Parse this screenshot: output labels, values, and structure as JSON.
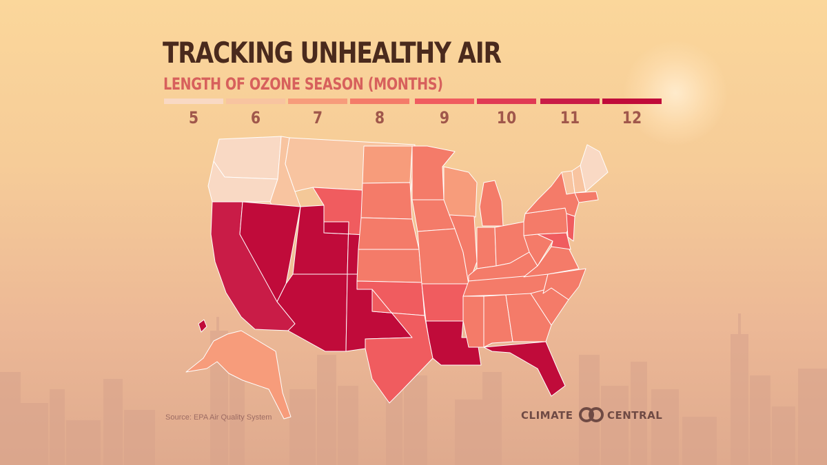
{
  "title": "TRACKING UNHEALTHY AIR",
  "subtitle": "LENGTH OF OZONE SEASON (MONTHS)",
  "legend": [
    {
      "label": "5",
      "color": "#f9d9c4"
    },
    {
      "label": "6",
      "color": "#f8c4a0"
    },
    {
      "label": "7",
      "color": "#f79c7b"
    },
    {
      "label": "8",
      "color": "#f47b69"
    },
    {
      "label": "9",
      "color": "#f05c5f"
    },
    {
      "label": "10",
      "color": "#e03a54"
    },
    {
      "label": "11",
      "color": "#c91c47"
    },
    {
      "label": "12",
      "color": "#c00b3a"
    }
  ],
  "map_data": {
    "states": {
      "WA": 5,
      "OR": 5,
      "ID": 6,
      "MT": 6,
      "CA": 11,
      "NV": 12,
      "UT": 12,
      "AZ": 12,
      "WY": 9,
      "CO": 12,
      "NM": 12,
      "ND": 7,
      "SD": 8,
      "NE": 8,
      "KS": 8,
      "OK": 9,
      "TX": 9,
      "MN": 8,
      "IA": 8,
      "MO": 8,
      "AR": 9,
      "LA": 12,
      "WI": 7,
      "IL": 8,
      "MI": 8,
      "IN": 8,
      "OH": 8,
      "KY": 8,
      "TN": 8,
      "MS": 8,
      "AL": 8,
      "GA": 8,
      "FL": 12,
      "SC": 8,
      "NC": 8,
      "VA": 8,
      "WV": 8,
      "PA": 8,
      "NY": 8,
      "ME": 5,
      "NH": 6,
      "VT": 6,
      "MA": 8,
      "NJ": 9,
      "MD": 9,
      "AK": 7,
      "HI": 12
    }
  },
  "source": "Source: EPA Air Quality System",
  "logo": {
    "left": "CLIMATE",
    "right": "CENTRAL"
  }
}
